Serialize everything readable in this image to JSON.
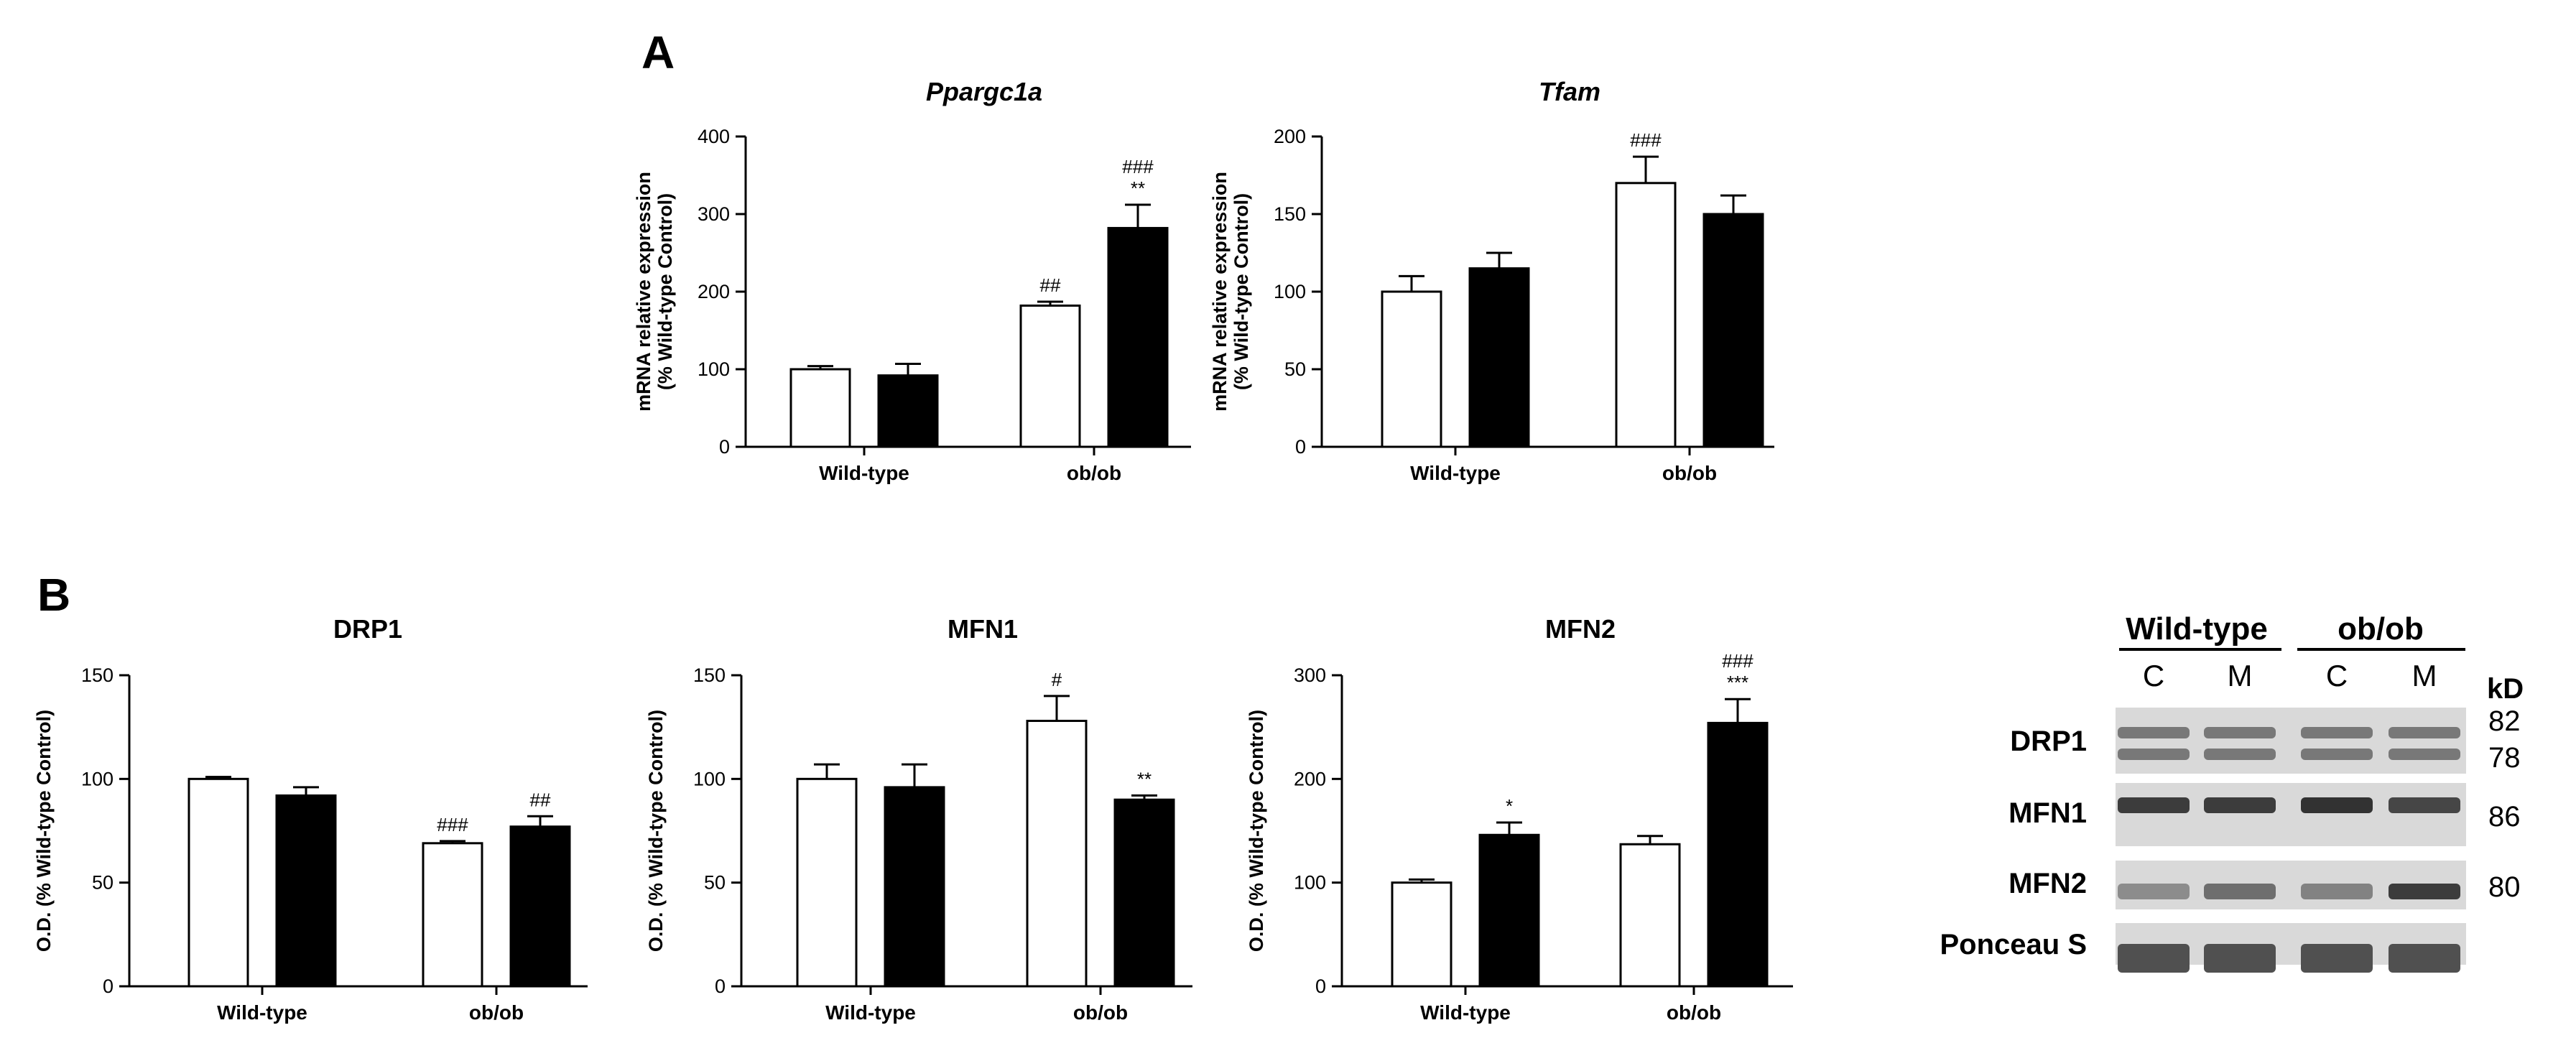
{
  "panels": {
    "a": "A",
    "b": "B"
  },
  "chart_data": [
    {
      "type": "bar",
      "id": "ppargc1a",
      "title": "Ppargc1a",
      "title_italic": true,
      "ylabel": [
        "mRNA relative expression",
        "(% Wild-type Control)"
      ],
      "categories": [
        "Wild-type",
        "ob/ob"
      ],
      "series": [
        {
          "name": "C",
          "fill": "#ffffff",
          "values": [
            100,
            182
          ],
          "errors": [
            4,
            5
          ]
        },
        {
          "name": "M",
          "fill": "#000000",
          "values": [
            92,
            282
          ],
          "errors": [
            15,
            30
          ]
        }
      ],
      "annotations": [
        {
          "category": 1,
          "series": 0,
          "lines": [
            "##"
          ]
        },
        {
          "category": 1,
          "series": 1,
          "lines": [
            "###",
            "**"
          ]
        }
      ],
      "ylim": [
        0,
        400
      ],
      "yticks": [
        0,
        100,
        200,
        300,
        400
      ],
      "grid": false
    },
    {
      "type": "bar",
      "id": "tfam",
      "title": "Tfam",
      "title_italic": true,
      "ylabel": [
        "mRNA relative expression",
        "(% Wild-type Control)"
      ],
      "categories": [
        "Wild-type",
        "ob/ob"
      ],
      "series": [
        {
          "name": "C",
          "fill": "#ffffff",
          "values": [
            100,
            170
          ],
          "errors": [
            10,
            17
          ]
        },
        {
          "name": "M",
          "fill": "#000000",
          "values": [
            115,
            150
          ],
          "errors": [
            10,
            12
          ]
        }
      ],
      "annotations": [
        {
          "category": 1,
          "series": 0,
          "lines": [
            "###"
          ]
        }
      ],
      "ylim": [
        0,
        200
      ],
      "yticks": [
        0,
        50,
        100,
        150,
        200
      ],
      "grid": false
    },
    {
      "type": "bar",
      "id": "drp1",
      "title": "DRP1",
      "title_italic": false,
      "ylabel": [
        "O.D. (% Wild-type Control)"
      ],
      "categories": [
        "Wild-type",
        "ob/ob"
      ],
      "series": [
        {
          "name": "C",
          "fill": "#ffffff",
          "values": [
            100,
            69
          ],
          "errors": [
            1,
            1
          ]
        },
        {
          "name": "M",
          "fill": "#000000",
          "values": [
            92,
            77
          ],
          "errors": [
            4,
            5
          ]
        }
      ],
      "annotations": [
        {
          "category": 1,
          "series": 0,
          "lines": [
            "###"
          ]
        },
        {
          "category": 1,
          "series": 1,
          "lines": [
            "##"
          ]
        }
      ],
      "ylim": [
        0,
        150
      ],
      "yticks": [
        0,
        50,
        100,
        150
      ],
      "grid": false
    },
    {
      "type": "bar",
      "id": "mfn1",
      "title": "MFN1",
      "title_italic": false,
      "ylabel": [
        "O.D. (% Wild-type Control)"
      ],
      "categories": [
        "Wild-type",
        "ob/ob"
      ],
      "series": [
        {
          "name": "C",
          "fill": "#ffffff",
          "values": [
            100,
            128
          ],
          "errors": [
            7,
            12
          ]
        },
        {
          "name": "M",
          "fill": "#000000",
          "values": [
            96,
            90
          ],
          "errors": [
            11,
            2
          ]
        }
      ],
      "annotations": [
        {
          "category": 1,
          "series": 0,
          "lines": [
            "#"
          ]
        },
        {
          "category": 1,
          "series": 1,
          "lines": [
            "**"
          ]
        }
      ],
      "ylim": [
        0,
        150
      ],
      "yticks": [
        0,
        50,
        100,
        150
      ],
      "grid": false
    },
    {
      "type": "bar",
      "id": "mfn2",
      "title": "MFN2",
      "title_italic": false,
      "ylabel": [
        "O.D. (% Wild-type Control)"
      ],
      "categories": [
        "Wild-type",
        "ob/ob"
      ],
      "series": [
        {
          "name": "C",
          "fill": "#ffffff",
          "values": [
            100,
            137
          ],
          "errors": [
            3,
            8
          ]
        },
        {
          "name": "M",
          "fill": "#000000",
          "values": [
            146,
            254
          ],
          "errors": [
            12,
            23
          ]
        }
      ],
      "annotations": [
        {
          "category": 0,
          "series": 1,
          "lines": [
            "*"
          ]
        },
        {
          "category": 1,
          "series": 1,
          "lines": [
            "###",
            "***"
          ]
        }
      ],
      "ylim": [
        0,
        300
      ],
      "yticks": [
        0,
        100,
        200,
        300
      ],
      "grid": false
    }
  ],
  "blot": {
    "groups": [
      "Wild-type",
      "ob/ob"
    ],
    "lanes": [
      "C",
      "M",
      "C",
      "M"
    ],
    "kd_header": "kD",
    "rows": [
      {
        "label": "DRP1",
        "kd": [
          "82",
          "78"
        ],
        "darkness": [
          0.55,
          0.55,
          0.55,
          0.55
        ]
      },
      {
        "label": "MFN1",
        "kd": [
          "86"
        ],
        "darkness": [
          0.85,
          0.85,
          0.9,
          0.8
        ]
      },
      {
        "label": "MFN2",
        "kd": [
          "80"
        ],
        "darkness": [
          0.45,
          0.6,
          0.5,
          0.85
        ]
      },
      {
        "label": "Ponceau S",
        "kd": [],
        "darkness": [
          0.75,
          0.75,
          0.75,
          0.75
        ]
      }
    ]
  }
}
